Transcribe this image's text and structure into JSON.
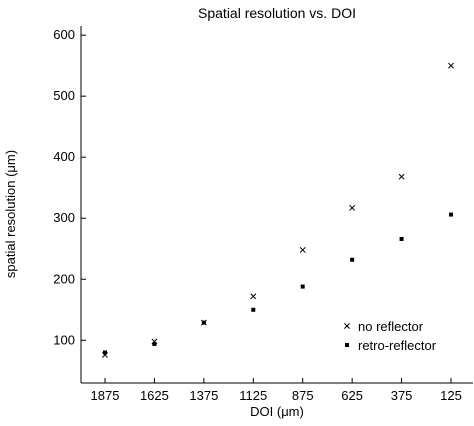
{
  "chart_data": {
    "type": "scatter",
    "title": "Spatial resolution vs. DOI",
    "xlabel": "DOI (μm)",
    "ylabel": "spatial resolution (μm)",
    "x": [
      1875,
      1625,
      1375,
      1125,
      875,
      625,
      375,
      125
    ],
    "x_tick_labels": [
      "1875",
      "1625",
      "1375",
      "1125",
      "875",
      "625",
      "375",
      "125"
    ],
    "xlim": [
      2000,
      0
    ],
    "x_reversed": true,
    "ylim": [
      30,
      615
    ],
    "y_ticks": [
      100,
      200,
      300,
      400,
      500,
      600
    ],
    "grid": false,
    "legend_position": "lower-right",
    "series": [
      {
        "name": "no reflector",
        "marker": "x",
        "values": [
          76,
          98,
          129,
          172,
          248,
          317,
          368,
          550
        ]
      },
      {
        "name": "retro-reflector",
        "marker": "square",
        "values": [
          80,
          94,
          129,
          150,
          188,
          232,
          266,
          306
        ]
      }
    ]
  }
}
